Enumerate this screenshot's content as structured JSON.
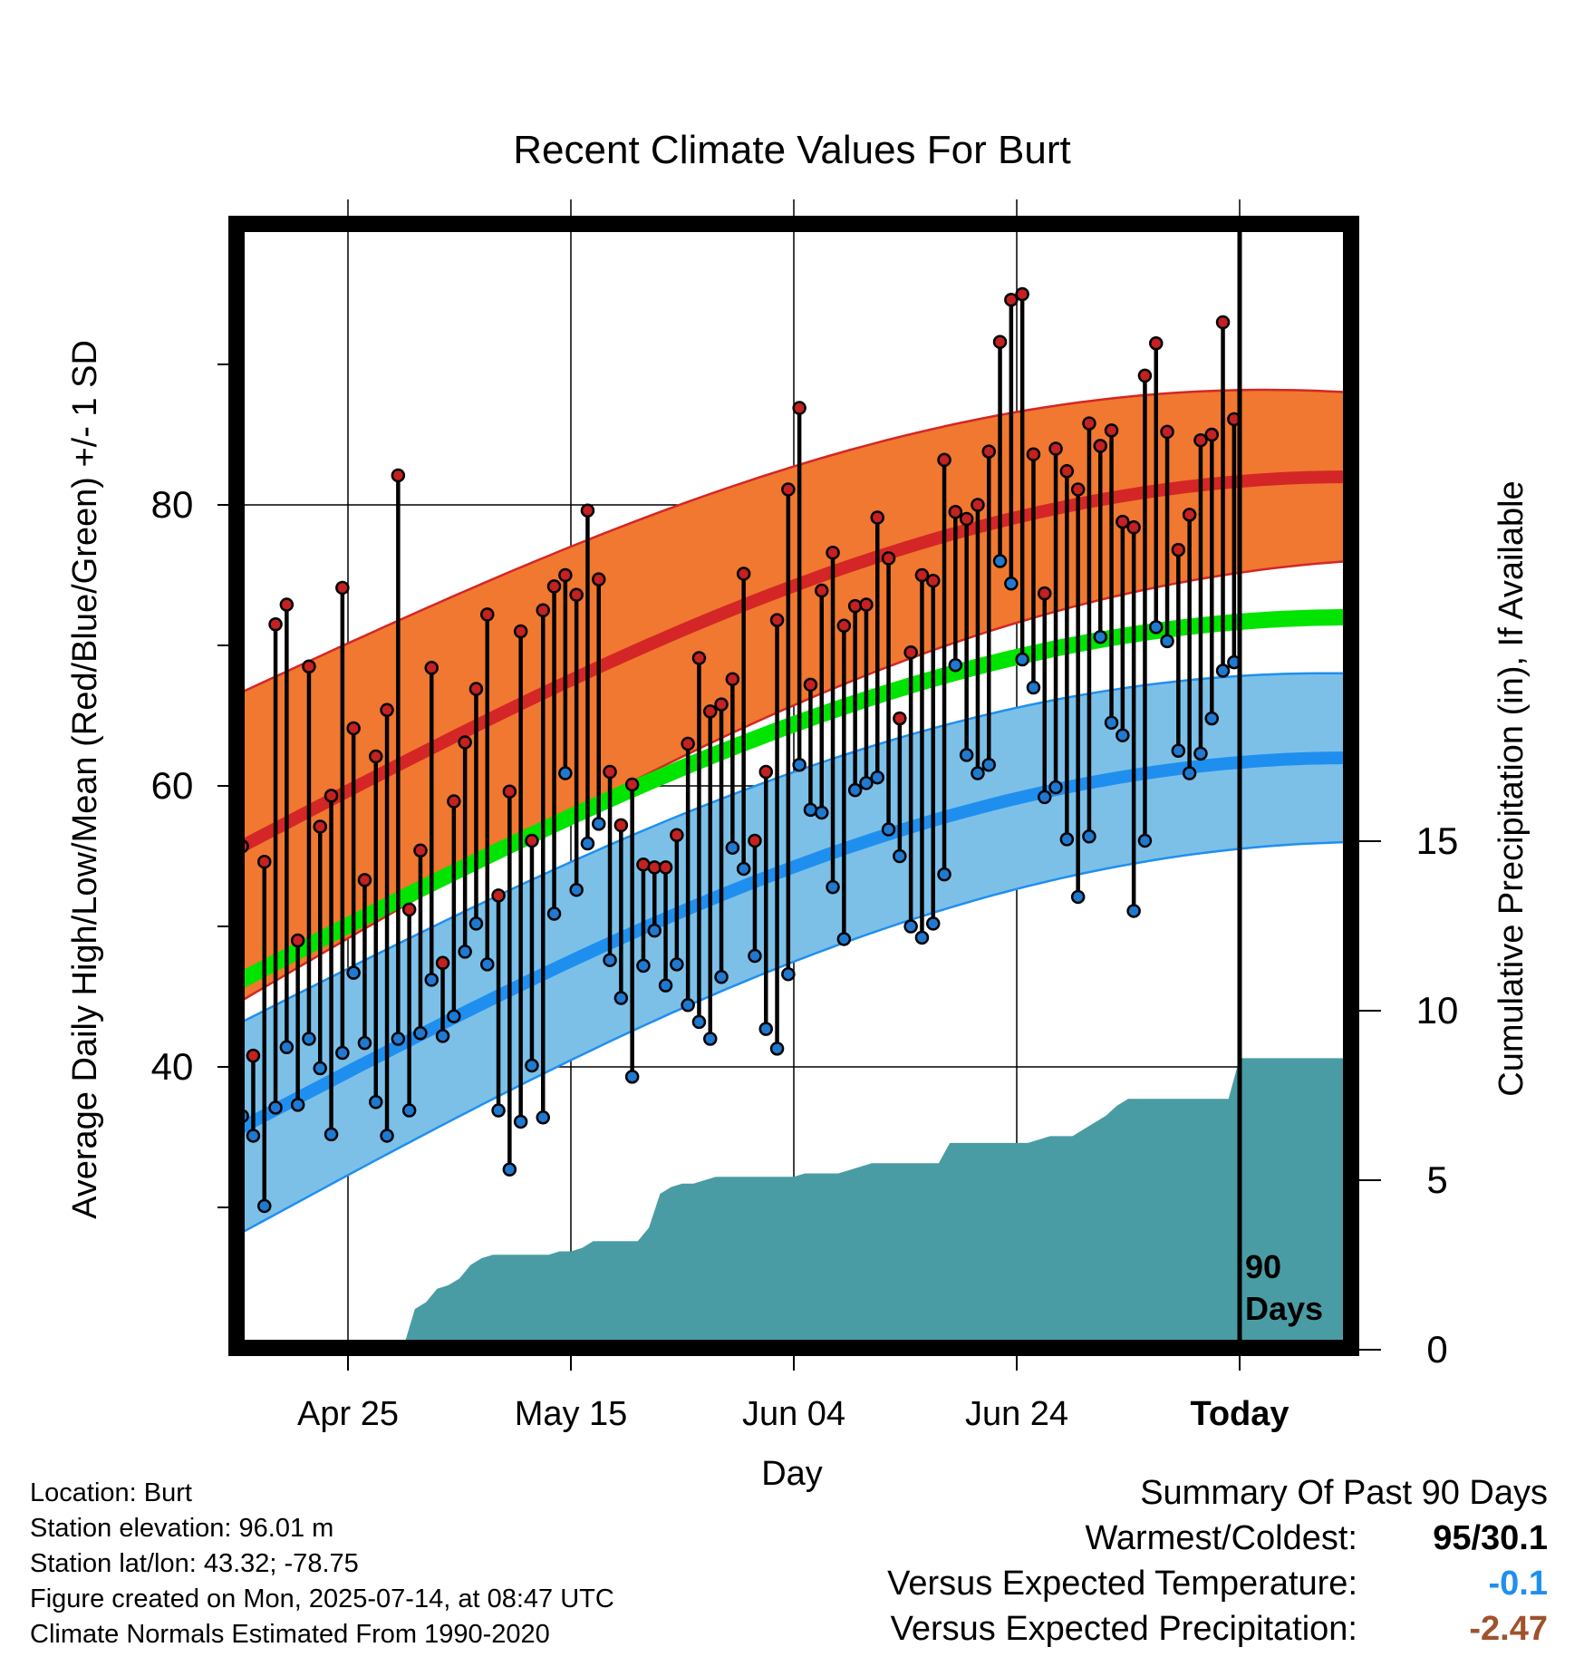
{
  "chart_data": {
    "type": "line",
    "title": "Recent Climate Values For Burt",
    "xlabel": "Day",
    "ylabel_left": "Average Daily High/Low/Mean (Red/Blue/Green) +/- 1 SD",
    "ylabel_right": "Cumulative Precipitation (in), If Available",
    "x_ticks": [
      "Apr 25",
      "May 15",
      "Jun 04",
      "Jun 24",
      "Today"
    ],
    "x_range": [
      "Apr 15",
      "Jul 24"
    ],
    "ylim_left": [
      20,
      100
    ],
    "yticks_left": [
      "40",
      "60",
      "80"
    ],
    "ylim_right": [
      0,
      34
    ],
    "yticks_right": [
      "0",
      "5",
      "10",
      "15"
    ],
    "grid": true,
    "today_marker": "90\nDays",
    "colors": {
      "high_band": "#f07830",
      "high_mean": "#d42626",
      "mean": "#00e400",
      "low_band": "#7cc0e8",
      "low_mean": "#1f8fef",
      "precip": "#4a9ca4",
      "high_point": "#c42121",
      "low_point": "#1f79d0"
    },
    "normals": {
      "high_mean": {
        "start": 55.5,
        "end": 82.0
      },
      "high_sd": {
        "start": 11.0,
        "end": 6.0
      },
      "mean": {
        "start": 46.0,
        "end": 72.0
      },
      "low_mean": {
        "start": 35.5,
        "end": 62.0
      },
      "low_sd": {
        "start": 7.5,
        "end": 6.0
      }
    },
    "daily_high": [
      55.7,
      40.8,
      54.6,
      71.5,
      72.9,
      49.0,
      68.5,
      57.1,
      59.3,
      74.1,
      64.1,
      53.3,
      62.1,
      65.4,
      82.1,
      51.2,
      55.4,
      68.4,
      47.4,
      58.9,
      63.1,
      66.9,
      72.2,
      52.2,
      59.6,
      71.0,
      56.1,
      72.5,
      74.2,
      75.0,
      73.6,
      79.6,
      74.7,
      61.0,
      57.2,
      60.1,
      54.4,
      54.2,
      54.2,
      56.5,
      63.0,
      69.1,
      65.3,
      65.8,
      67.6,
      75.1,
      56.1,
      61.0,
      71.8,
      81.1,
      86.9,
      67.2,
      73.9,
      76.6,
      71.4,
      72.8,
      72.9,
      79.1,
      76.2,
      64.8,
      69.5,
      75.0,
      74.6,
      83.2,
      79.5,
      79.0,
      80.0,
      83.8,
      91.6,
      94.6,
      95.0,
      83.6,
      73.7,
      84.0,
      82.4,
      81.1,
      85.8,
      84.2,
      85.3,
      78.8,
      78.4,
      89.2,
      91.5,
      85.2,
      76.8,
      79.3,
      84.6,
      85.0,
      93.0,
      86.1
    ],
    "daily_low": [
      36.5,
      35.1,
      30.1,
      37.1,
      41.4,
      37.3,
      42.0,
      39.9,
      35.2,
      41.0,
      46.7,
      41.7,
      37.5,
      35.1,
      42.0,
      36.9,
      42.4,
      46.2,
      42.2,
      43.6,
      48.2,
      50.2,
      47.3,
      36.9,
      32.7,
      36.1,
      40.1,
      36.4,
      50.9,
      60.9,
      52.6,
      55.9,
      57.3,
      47.6,
      44.9,
      39.3,
      47.2,
      49.7,
      45.8,
      47.3,
      44.4,
      43.2,
      42.0,
      46.4,
      55.6,
      54.1,
      47.9,
      42.7,
      41.3,
      46.6,
      61.5,
      58.3,
      58.1,
      52.8,
      49.1,
      59.7,
      60.2,
      60.6,
      56.9,
      55.0,
      50.0,
      49.2,
      50.2,
      53.7,
      68.6,
      62.2,
      60.9,
      61.5,
      76.0,
      74.4,
      69.0,
      67.0,
      59.2,
      59.9,
      56.2,
      52.1,
      56.4,
      70.6,
      64.5,
      63.6,
      51.1,
      56.1,
      71.3,
      70.3,
      62.5,
      60.9,
      62.3,
      64.8,
      68.2,
      68.8
    ],
    "precip_cumulative": [
      [
        0,
        0
      ],
      [
        10,
        0
      ],
      [
        15,
        0.1
      ],
      [
        16,
        1.2
      ],
      [
        17,
        1.4
      ],
      [
        18,
        1.8
      ],
      [
        19,
        1.9
      ],
      [
        20,
        2.1
      ],
      [
        21,
        2.5
      ],
      [
        22,
        2.7
      ],
      [
        23,
        2.8
      ],
      [
        24,
        2.8
      ],
      [
        25,
        2.8
      ],
      [
        26,
        2.8
      ],
      [
        27,
        2.8
      ],
      [
        28,
        2.8
      ],
      [
        29,
        2.9
      ],
      [
        30,
        2.9
      ],
      [
        31,
        3.0
      ],
      [
        32,
        3.2
      ],
      [
        33,
        3.2
      ],
      [
        34,
        3.2
      ],
      [
        35,
        3.2
      ],
      [
        36,
        3.2
      ],
      [
        37,
        3.6
      ],
      [
        38,
        4.6
      ],
      [
        39,
        4.8
      ],
      [
        40,
        4.9
      ],
      [
        41,
        4.9
      ],
      [
        42,
        5.0
      ],
      [
        43,
        5.1
      ],
      [
        44,
        5.1
      ],
      [
        45,
        5.1
      ],
      [
        46,
        5.1
      ],
      [
        47,
        5.1
      ],
      [
        48,
        5.1
      ],
      [
        49,
        5.1
      ],
      [
        50,
        5.1
      ],
      [
        51,
        5.2
      ],
      [
        52,
        5.2
      ],
      [
        53,
        5.2
      ],
      [
        54,
        5.2
      ],
      [
        55,
        5.3
      ],
      [
        56,
        5.4
      ],
      [
        57,
        5.5
      ],
      [
        58,
        5.5
      ],
      [
        59,
        5.5
      ],
      [
        60,
        5.5
      ],
      [
        61,
        5.5
      ],
      [
        62,
        5.5
      ],
      [
        63,
        5.5
      ],
      [
        64,
        6.1
      ],
      [
        65,
        6.1
      ],
      [
        66,
        6.1
      ],
      [
        67,
        6.1
      ],
      [
        68,
        6.1
      ],
      [
        69,
        6.1
      ],
      [
        70,
        6.1
      ],
      [
        71,
        6.1
      ],
      [
        72,
        6.2
      ],
      [
        73,
        6.3
      ],
      [
        74,
        6.3
      ],
      [
        75,
        6.3
      ],
      [
        76,
        6.5
      ],
      [
        77,
        6.7
      ],
      [
        78,
        6.9
      ],
      [
        79,
        7.2
      ],
      [
        80,
        7.4
      ],
      [
        81,
        7.4
      ],
      [
        82,
        7.4
      ],
      [
        83,
        7.4
      ],
      [
        84,
        7.4
      ],
      [
        85,
        7.4
      ],
      [
        86,
        7.4
      ],
      [
        87,
        7.4
      ],
      [
        88,
        7.4
      ],
      [
        89,
        7.4
      ],
      [
        90,
        8.6
      ],
      [
        100,
        8.6
      ]
    ]
  },
  "info": {
    "location": "Location: Burt",
    "elevation": "Station elevation: 96.01 m",
    "latlon": "Station lat/lon: 43.32; -78.75",
    "created": "Figure created on Mon, 2025-07-14, at 08:47 UTC",
    "normals": "Climate Normals Estimated From 1990-2020"
  },
  "summary": {
    "heading": "Summary Of Past 90 Days",
    "warmest_label": "Warmest/Coldest:",
    "warmest_value": "95/30.1",
    "temp_label": "Versus Expected Temperature:",
    "temp_value": "-0.1",
    "temp_color": "#1f8fef",
    "precip_label": "Versus Expected Precipitation:",
    "precip_value": "-2.47",
    "precip_color": "#a0522d"
  }
}
